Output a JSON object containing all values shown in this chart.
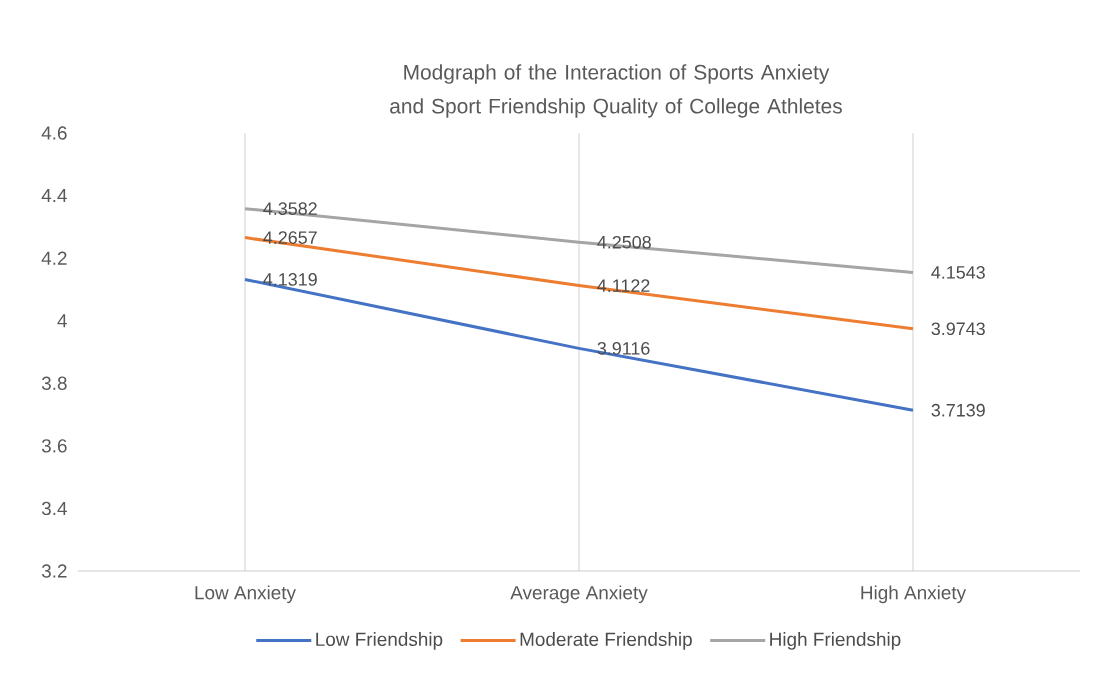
{
  "chart_data": {
    "type": "line",
    "title": "Modgraph of the Interaction of Sports Anxiety and Sport Friendship Quality of College Athletes",
    "categories": [
      "Low Anxiety",
      "Average Anxiety",
      "High Anxiety"
    ],
    "series": [
      {
        "name": "Low Friendship",
        "color": "#4472c4",
        "values": [
          4.1319,
          3.9116,
          3.7139
        ]
      },
      {
        "name": "Moderate Friendship",
        "color": "#ed7d31",
        "values": [
          4.2657,
          4.1122,
          3.9743
        ]
      },
      {
        "name": "High Friendship",
        "color": "#a5a5a5",
        "values": [
          4.3582,
          4.2508,
          4.1543
        ]
      }
    ],
    "ylim": [
      3.2,
      4.6
    ],
    "yticks": [
      3.2,
      3.4,
      3.6,
      3.8,
      4,
      4.2,
      4.4,
      4.6
    ],
    "grid": "x",
    "legend": "bottom",
    "data_labels": true,
    "marker": "none",
    "line_style": "solid"
  }
}
